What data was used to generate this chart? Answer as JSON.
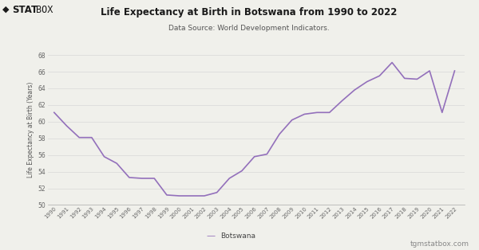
{
  "title": "Life Expectancy at Birth in Botswana from 1990 to 2022",
  "subtitle": "Data Source: World Development Indicators.",
  "ylabel": "Life Expectancy at Birth (Years)",
  "legend_label": "Botswana",
  "watermark": "tgmstatbox.com",
  "line_color": "#9370BB",
  "background_color": "#f0f0eb",
  "grid_color": "#d8d8d8",
  "ylim": [
    50,
    68
  ],
  "yticks": [
    50,
    52,
    54,
    56,
    58,
    60,
    62,
    64,
    66,
    68
  ],
  "years": [
    1990,
    1991,
    1992,
    1993,
    1994,
    1995,
    1996,
    1997,
    1998,
    1999,
    2000,
    2001,
    2002,
    2003,
    2004,
    2005,
    2006,
    2007,
    2008,
    2009,
    2010,
    2011,
    2012,
    2013,
    2014,
    2015,
    2016,
    2017,
    2018,
    2019,
    2020,
    2021,
    2022
  ],
  "values": [
    61.1,
    59.5,
    58.1,
    58.1,
    55.8,
    55.0,
    53.3,
    53.2,
    53.2,
    51.2,
    51.1,
    51.1,
    51.1,
    51.5,
    53.2,
    54.1,
    55.8,
    56.1,
    58.5,
    60.2,
    60.9,
    61.1,
    61.1,
    62.5,
    63.8,
    64.8,
    65.5,
    67.1,
    65.2,
    65.1,
    66.1,
    61.1,
    66.1
  ]
}
